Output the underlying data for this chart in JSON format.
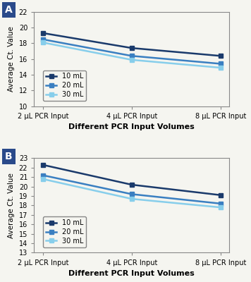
{
  "panel_A": {
    "x_positions": [
      0,
      1,
      2
    ],
    "x_labels": [
      "2 μL PCR Input",
      "4 μL PCR Input",
      "8 μL PCR Input"
    ],
    "series": [
      {
        "label": "10 mL",
        "values": [
          19.3,
          17.4,
          16.4
        ],
        "color": "#1a3a6b",
        "marker": "s"
      },
      {
        "label": "20 mL",
        "values": [
          18.5,
          16.4,
          15.4
        ],
        "color": "#3a7fc1",
        "marker": "s"
      },
      {
        "label": "30 mL",
        "values": [
          18.1,
          15.9,
          14.9
        ],
        "color": "#87ceeb",
        "marker": "s"
      }
    ],
    "ylabel": "Average Ct. Value",
    "xlabel": "Different PCR Input Volumes",
    "ylim": [
      10,
      22
    ],
    "yticks": [
      10,
      12,
      14,
      16,
      18,
      20,
      22
    ],
    "panel_label": "A"
  },
  "panel_B": {
    "x_positions": [
      0,
      1,
      2
    ],
    "x_labels": [
      "2 μL PCR Input",
      "4 μL PCR Input",
      "8 μL PCR Input"
    ],
    "series": [
      {
        "label": "10 mL",
        "values": [
          22.3,
          20.2,
          19.1
        ],
        "color": "#1a3a6b",
        "marker": "s"
      },
      {
        "label": "20 mL",
        "values": [
          21.2,
          19.2,
          18.2
        ],
        "color": "#3a7fc1",
        "marker": "s"
      },
      {
        "label": "30 mL",
        "values": [
          20.8,
          18.7,
          17.8
        ],
        "color": "#87ceeb",
        "marker": "s"
      }
    ],
    "ylabel": "Average Ct. Value",
    "xlabel": "Different PCR Input Volumes",
    "ylim": [
      13,
      23
    ],
    "yticks": [
      13,
      14,
      15,
      16,
      17,
      18,
      19,
      20,
      21,
      22,
      23
    ],
    "panel_label": "B"
  },
  "bg_color": "#f5f5f0",
  "panel_label_bg": "#2a4a8a",
  "panel_label_color": "#ffffff",
  "linewidth": 1.8,
  "markersize": 5
}
